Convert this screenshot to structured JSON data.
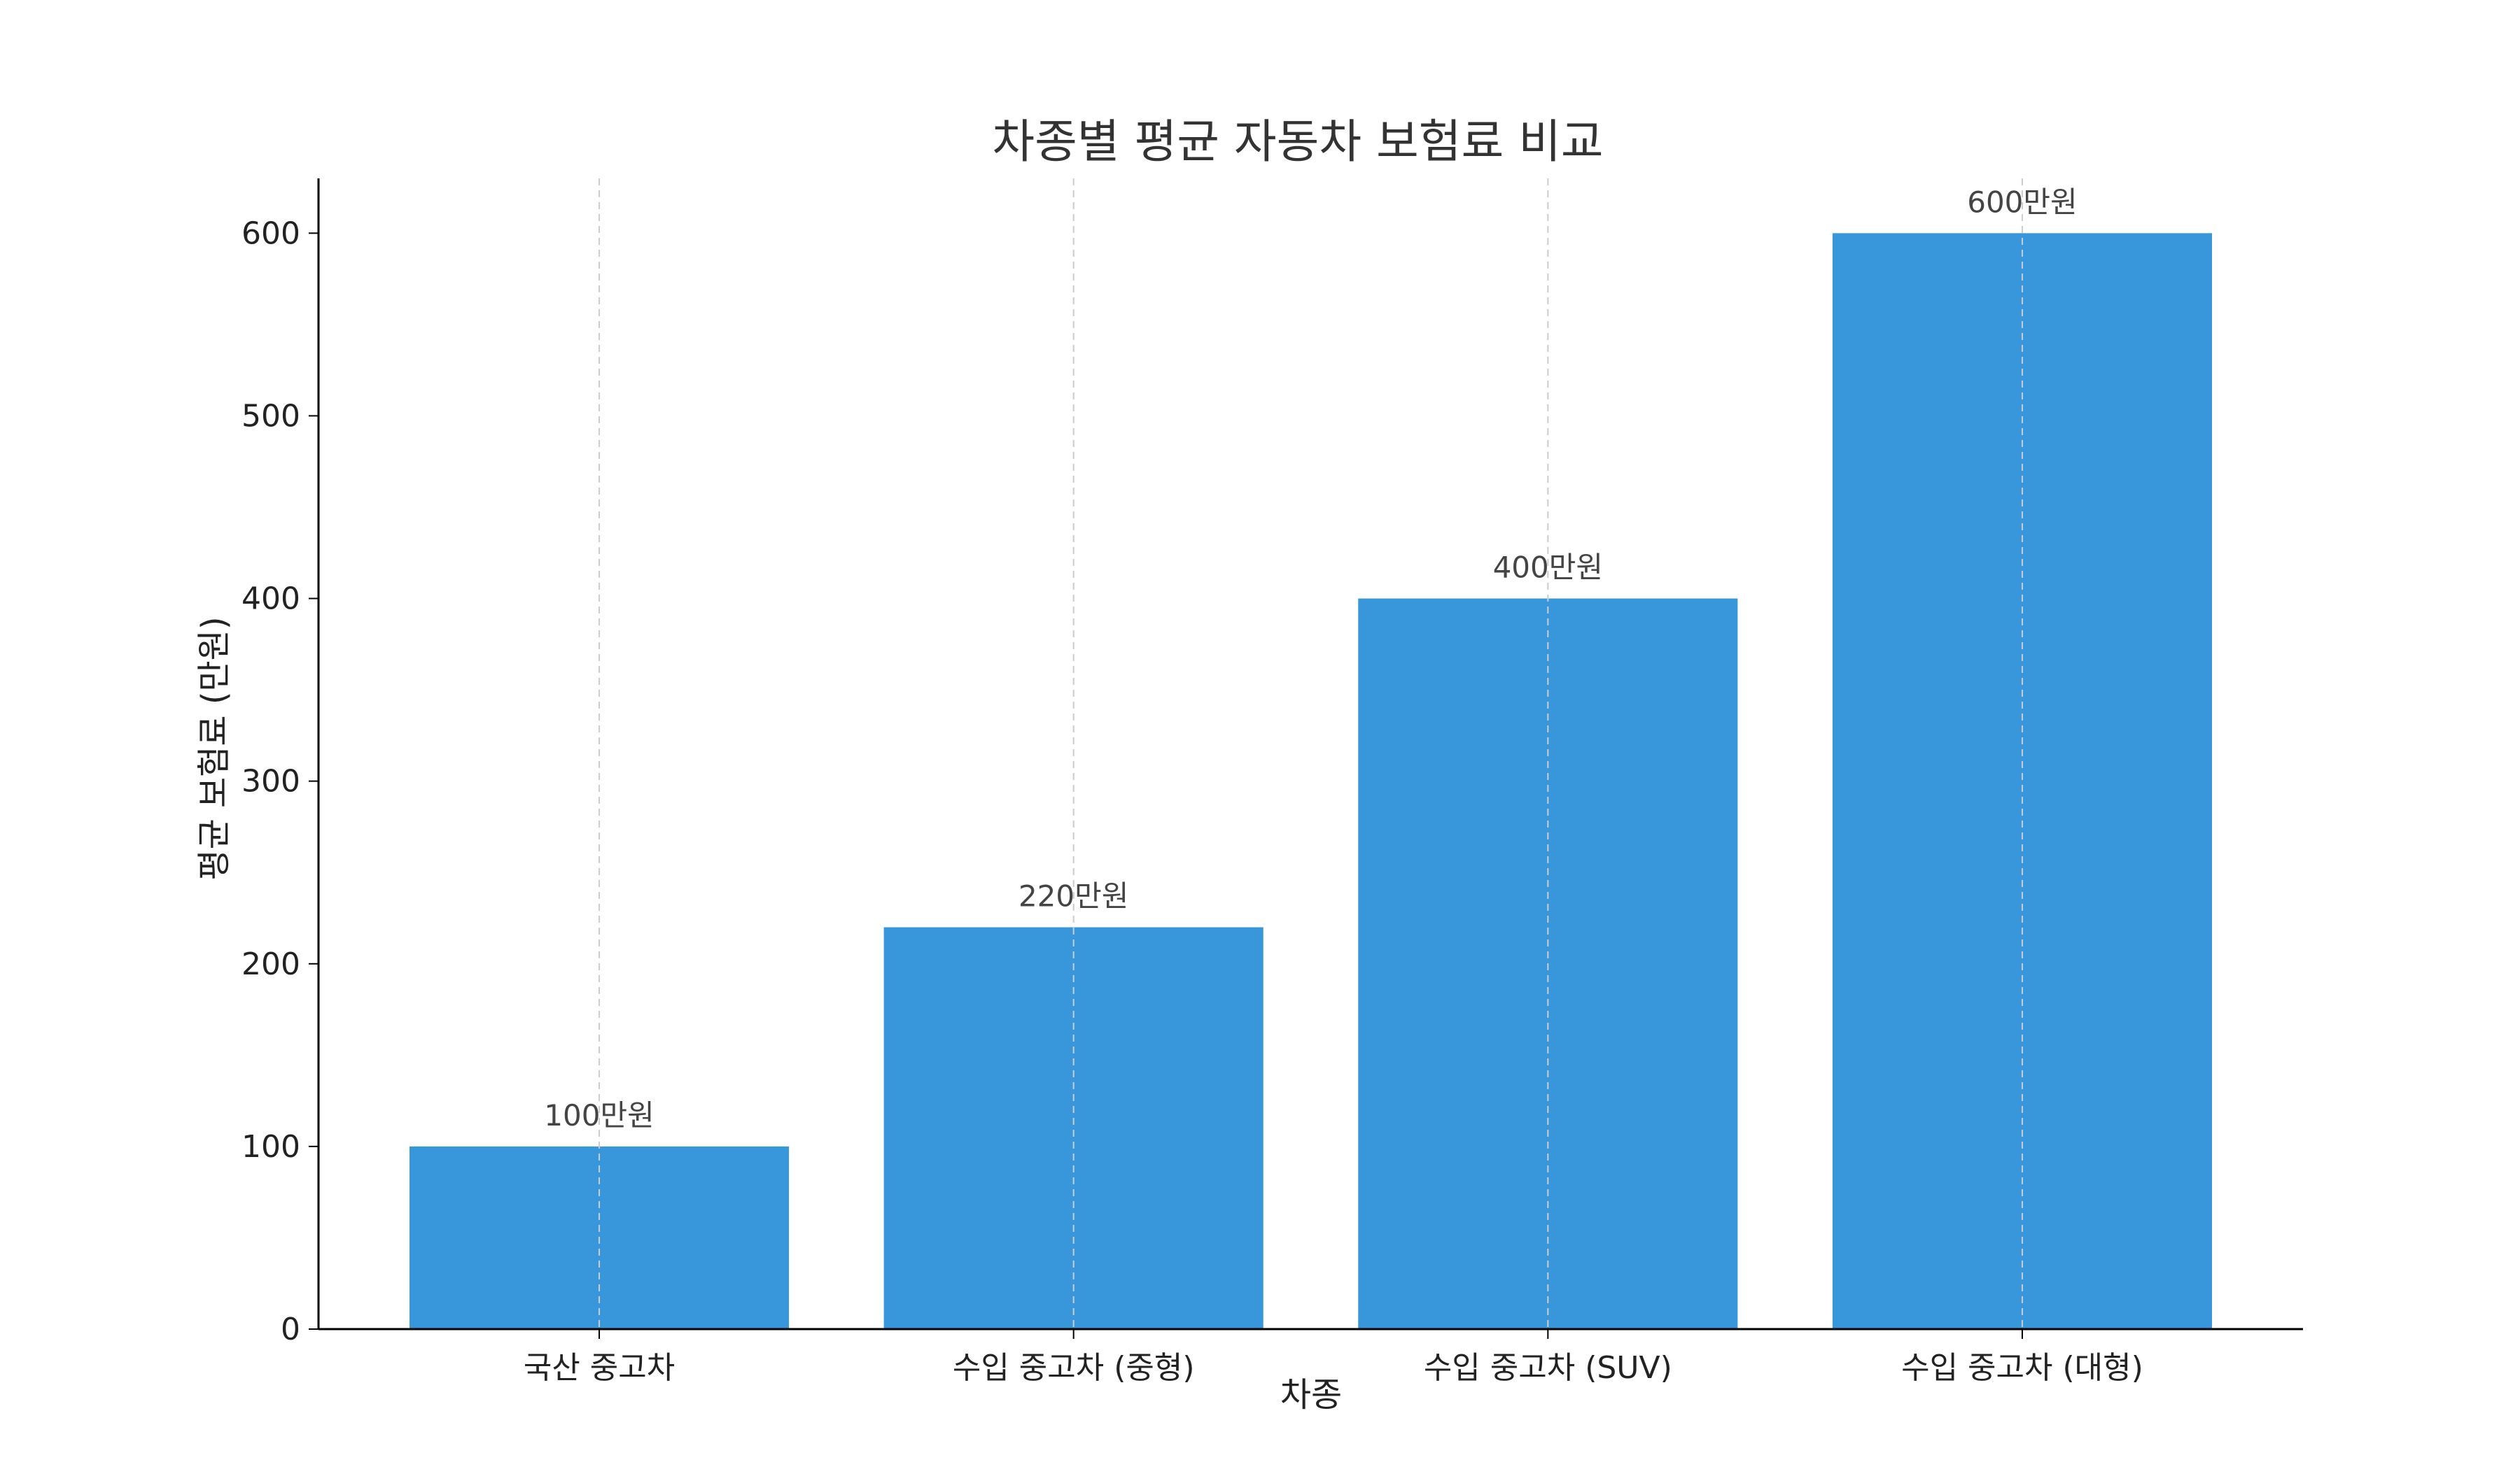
{
  "chart_data": {
    "type": "bar",
    "title": "차종별 평균 자동차 보험료 비교",
    "xlabel": "차종",
    "ylabel": "평균 보험료 (만원)",
    "categories": [
      "국산 중고차",
      "수입 중고차 (중형)",
      "수입 중고차 (SUV)",
      "수입 중고차 (대형)"
    ],
    "values": [
      100,
      220,
      400,
      600
    ],
    "data_labels": [
      "100만원",
      "220만원",
      "400만원",
      "600만원"
    ],
    "yticks": [
      0,
      100,
      200,
      300,
      400,
      500,
      600
    ],
    "ylim": [
      0,
      630
    ],
    "grid": "vertical dashed at categories",
    "colors": {
      "bar": "#3897DB",
      "axis": "#000000",
      "grid": "#CCCCCC"
    }
  }
}
